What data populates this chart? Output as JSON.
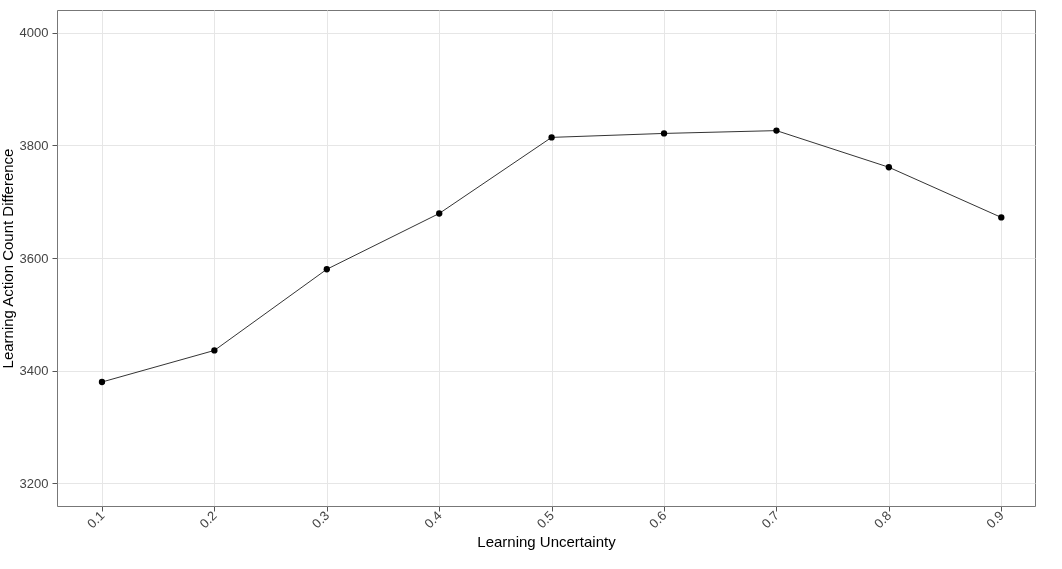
{
  "chart_data": {
    "type": "line",
    "xlabel": "Learning Uncertainty",
    "ylabel": "Learning Action Count Difference",
    "x": [
      0.1,
      0.2,
      0.3,
      0.4,
      0.5,
      0.6,
      0.7,
      0.8,
      0.9
    ],
    "series": [
      {
        "color": "#000000",
        "values": [
          3380,
          3436,
          3580,
          3679,
          3814,
          3821,
          3826,
          3761,
          3672
        ]
      }
    ],
    "xlim": [
      0.06,
      0.93
    ],
    "xticks": [
      0.1,
      0.2,
      0.3,
      0.4,
      0.5,
      0.6,
      0.7,
      0.8,
      0.9
    ],
    "ylim": [
      3160,
      4040
    ],
    "yticks": [
      3200,
      3400,
      3600,
      3800,
      4000
    ],
    "grid": true,
    "marker": "circle",
    "line_style": "solid"
  }
}
